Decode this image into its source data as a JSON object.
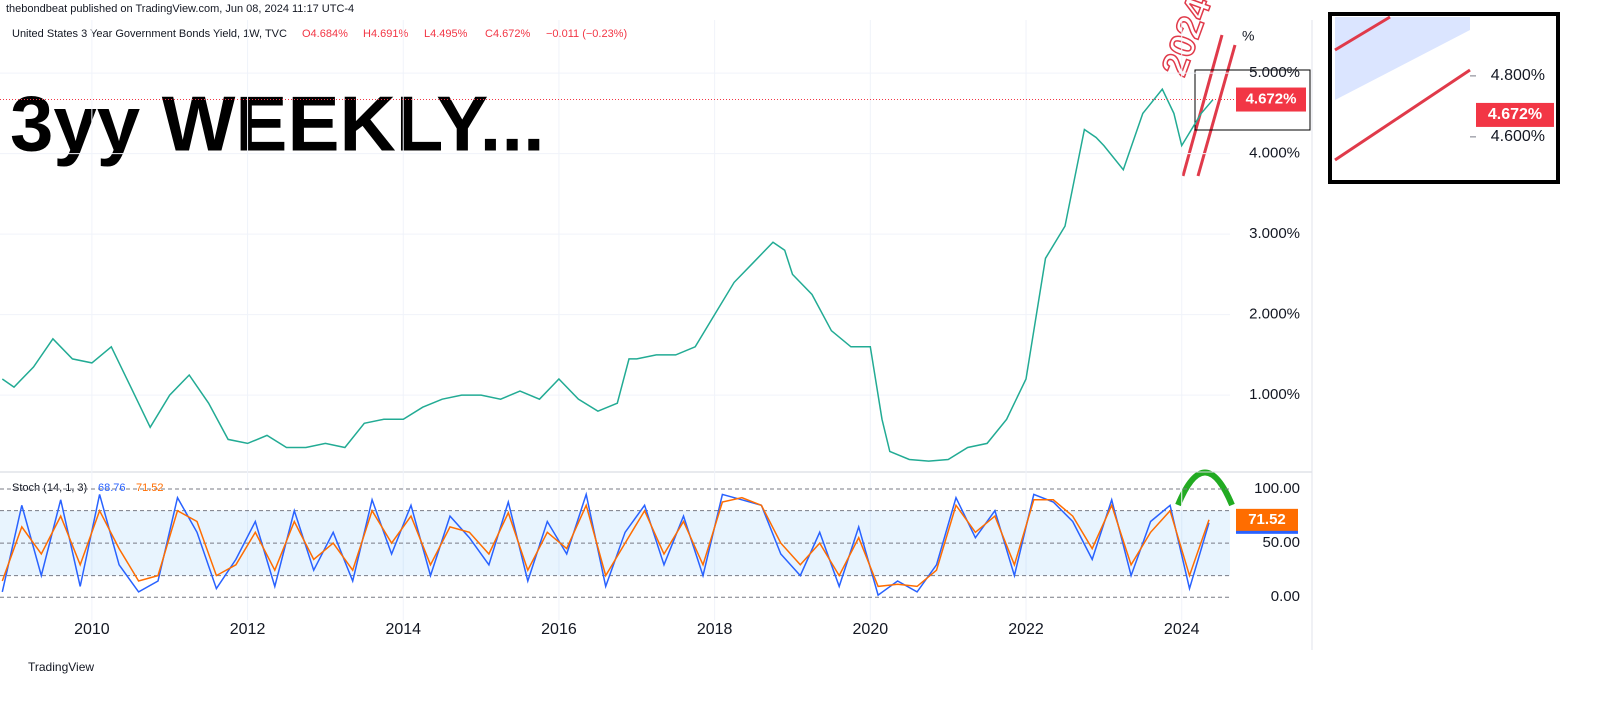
{
  "header": "thebondbeat published on TradingView.com, Jun 08, 2024 11:17 UTC-4",
  "headline": "3yy WEEKLY...",
  "annotation": "2024",
  "footer": "TradingView",
  "chart_data": [
    {
      "type": "line",
      "legend": "United States 3 Year Government Bonds Yield, 1W, TVC",
      "ohlc": [
        "O4.684%",
        "H4.691%",
        "L4.495%",
        "C4.672%",
        "−0.011 (−0.23%)"
      ],
      "unit": "%",
      "x": [
        2008.85,
        2009,
        2009.25,
        2009.5,
        2009.75,
        2010,
        2010.25,
        2010.5,
        2010.75,
        2011,
        2011.25,
        2011.5,
        2011.75,
        2012,
        2012.25,
        2012.5,
        2012.75,
        2013,
        2013.25,
        2013.5,
        2013.75,
        2014,
        2014.25,
        2014.5,
        2014.75,
        2015,
        2015.25,
        2015.5,
        2015.75,
        2016,
        2016.25,
        2016.5,
        2016.75,
        2016.9,
        2017,
        2017.25,
        2017.5,
        2017.75,
        2018,
        2018.25,
        2018.5,
        2018.75,
        2018.9,
        2019,
        2019.25,
        2019.5,
        2019.75,
        2020,
        2020.15,
        2020.25,
        2020.5,
        2020.75,
        2021,
        2021.25,
        2021.5,
        2021.75,
        2022,
        2022.25,
        2022.5,
        2022.75,
        2022.9,
        2023,
        2023.25,
        2023.5,
        2023.75,
        2023.9,
        2024,
        2024.25,
        2024.4
      ],
      "series": [
        {
          "color": "#22ab94",
          "values": [
            1.2,
            1.1,
            1.35,
            1.7,
            1.45,
            1.4,
            1.6,
            1.1,
            0.6,
            1.0,
            1.25,
            0.9,
            0.45,
            0.4,
            0.5,
            0.35,
            0.35,
            0.4,
            0.35,
            0.65,
            0.7,
            0.7,
            0.85,
            0.95,
            1.0,
            1.0,
            0.95,
            1.05,
            0.95,
            1.2,
            0.95,
            0.8,
            0.9,
            1.45,
            1.45,
            1.5,
            1.5,
            1.6,
            2.0,
            2.4,
            2.65,
            2.9,
            2.8,
            2.5,
            2.25,
            1.8,
            1.6,
            1.6,
            0.7,
            0.3,
            0.2,
            0.18,
            0.2,
            0.35,
            0.4,
            0.7,
            1.2,
            2.7,
            3.1,
            4.3,
            4.2,
            4.1,
            3.8,
            4.5,
            4.8,
            4.5,
            4.1,
            4.5,
            4.67
          ]
        }
      ],
      "xlim": [
        2008.82,
        2024.62
      ],
      "xticks": [
        2010,
        2012,
        2014,
        2016,
        2018,
        2020,
        2022,
        2024
      ],
      "ylim": [
        0.07,
        5.66
      ],
      "yticks": [
        {
          "value": 1,
          "label": "1.000%"
        },
        {
          "value": 2,
          "label": "2.000%"
        },
        {
          "value": 3,
          "label": "3.000%"
        },
        {
          "value": 4,
          "label": "4.000%"
        },
        {
          "value": 5,
          "label": "5.000%"
        }
      ],
      "price_label": {
        "value": 4.672,
        "label": "4.672%"
      },
      "grid": true
    },
    {
      "type": "stoch",
      "legend": "Stoch (14, 1, 3)",
      "x": [
        2008.85,
        2009.1,
        2009.35,
        2009.6,
        2009.85,
        2010.1,
        2010.35,
        2010.6,
        2010.85,
        2011.1,
        2011.35,
        2011.6,
        2011.85,
        2012.1,
        2012.35,
        2012.6,
        2012.85,
        2013.1,
        2013.35,
        2013.6,
        2013.85,
        2014.1,
        2014.35,
        2014.6,
        2014.85,
        2015.1,
        2015.35,
        2015.6,
        2015.85,
        2016.1,
        2016.35,
        2016.6,
        2016.85,
        2017.1,
        2017.35,
        2017.6,
        2017.85,
        2018.1,
        2018.35,
        2018.6,
        2018.85,
        2019.1,
        2019.35,
        2019.6,
        2019.85,
        2020.1,
        2020.35,
        2020.6,
        2020.85,
        2021.1,
        2021.35,
        2021.6,
        2021.85,
        2022.1,
        2022.35,
        2022.6,
        2022.85,
        2023.1,
        2023.35,
        2023.6,
        2023.85,
        2024.1,
        2024.35
      ],
      "series": [
        {
          "color": "#2962ff",
          "values": [
            5,
            85,
            20,
            90,
            10,
            95,
            30,
            5,
            15,
            92,
            60,
            8,
            35,
            70,
            10,
            80,
            25,
            60,
            15,
            90,
            40,
            85,
            20,
            75,
            55,
            30,
            88,
            15,
            70,
            40,
            95,
            10,
            60,
            85,
            30,
            75,
            20,
            95,
            90,
            85,
            40,
            20,
            60,
            10,
            65,
            2,
            15,
            5,
            30,
            92,
            55,
            80,
            20,
            95,
            88,
            70,
            35,
            90,
            20,
            70,
            85,
            8,
            68.76
          ]
        },
        {
          "color": "#ff6d00",
          "values": [
            15,
            65,
            40,
            75,
            30,
            80,
            45,
            15,
            20,
            80,
            70,
            20,
            30,
            60,
            25,
            70,
            35,
            50,
            25,
            80,
            50,
            75,
            30,
            65,
            60,
            40,
            78,
            25,
            60,
            45,
            85,
            20,
            50,
            80,
            40,
            70,
            30,
            88,
            92,
            85,
            50,
            30,
            50,
            20,
            55,
            10,
            12,
            10,
            25,
            85,
            60,
            75,
            30,
            90,
            90,
            75,
            45,
            85,
            30,
            60,
            80,
            20,
            71.52
          ]
        }
      ],
      "last": [
        68.76,
        71.52
      ],
      "xlim": [
        2008.82,
        2024.62
      ],
      "ylim": [
        -21,
        114.8
      ],
      "yticks": [
        {
          "value": 0,
          "label": "0.00"
        },
        {
          "value": 50,
          "label": "50.00"
        },
        {
          "value": 100,
          "label": "100.00"
        }
      ],
      "bands": [
        20,
        80
      ]
    },
    {
      "type": "inset",
      "ylim": [
        4.452,
        5.003
      ],
      "yticks": [
        {
          "value": 4.8,
          "label": "4.800%"
        },
        {
          "value": 4.6,
          "label": "4.600%"
        }
      ],
      "price_label": {
        "value": 4.672,
        "label": "4.672%"
      }
    }
  ]
}
